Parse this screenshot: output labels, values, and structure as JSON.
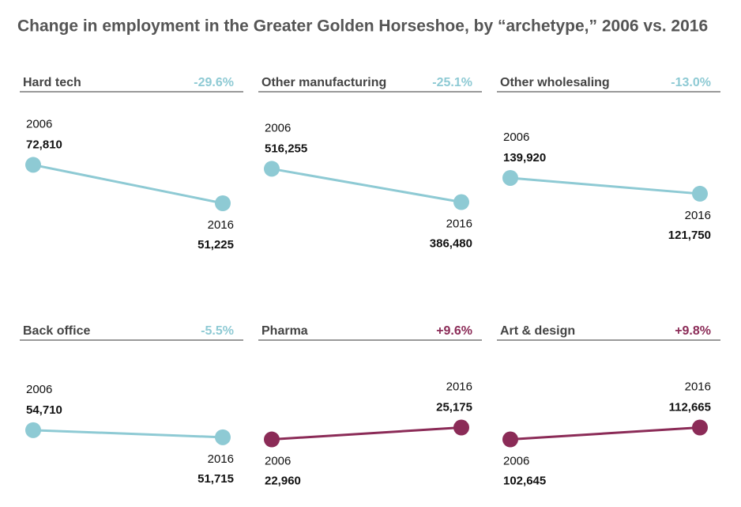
{
  "title": "Change in employment in the Greater Golden Horseshoe, by “archetype,” 2006 vs. 2016",
  "chart_data": [
    {
      "type": "line",
      "title": "Hard tech",
      "annotation": "-29.6%",
      "categories": [
        "2006",
        "2016"
      ],
      "values": [
        72810,
        51225
      ],
      "value_labels": [
        "72,810",
        "51,225"
      ],
      "color": "#8ecad4",
      "ylim": [
        25000,
        105000
      ]
    },
    {
      "type": "line",
      "title": "Other manufacturing",
      "annotation": "-25.1%",
      "categories": [
        "2006",
        "2016"
      ],
      "values": [
        516255,
        386480
      ],
      "value_labels": [
        "516,255",
        "386,480"
      ],
      "color": "#8ecad4",
      "ylim": [
        200000,
        755000
      ]
    },
    {
      "type": "line",
      "title": "Other wholesaling",
      "annotation": "-13.0%",
      "categories": [
        "2006",
        "2016"
      ],
      "values": [
        139920,
        121750
      ],
      "value_labels": [
        "139,920",
        "121,750"
      ],
      "color": "#8ecad4",
      "ylim": [
        57000,
        221000
      ]
    },
    {
      "type": "line",
      "title": "Back office",
      "annotation": "-5.5%",
      "categories": [
        "2006",
        "2016"
      ],
      "values": [
        54710,
        51715
      ],
      "value_labels": [
        "54,710",
        "51,715"
      ],
      "color": "#8ecad4",
      "ylim": [
        26000,
        86000
      ]
    },
    {
      "type": "line",
      "title": "Pharma",
      "annotation": "+9.6%",
      "categories": [
        "2006",
        "2016"
      ],
      "values": [
        22960,
        25175
      ],
      "value_labels": [
        "22,960",
        "25,175"
      ],
      "color": "#8b2b57",
      "ylim": [
        12000,
        38500
      ]
    },
    {
      "type": "line",
      "title": "Art & design",
      "annotation": "+9.8%",
      "categories": [
        "2006",
        "2016"
      ],
      "values": [
        102645,
        112665
      ],
      "value_labels": [
        "102,645",
        "112,665"
      ],
      "color": "#8b2b57",
      "ylim": [
        53000,
        173000
      ]
    }
  ]
}
